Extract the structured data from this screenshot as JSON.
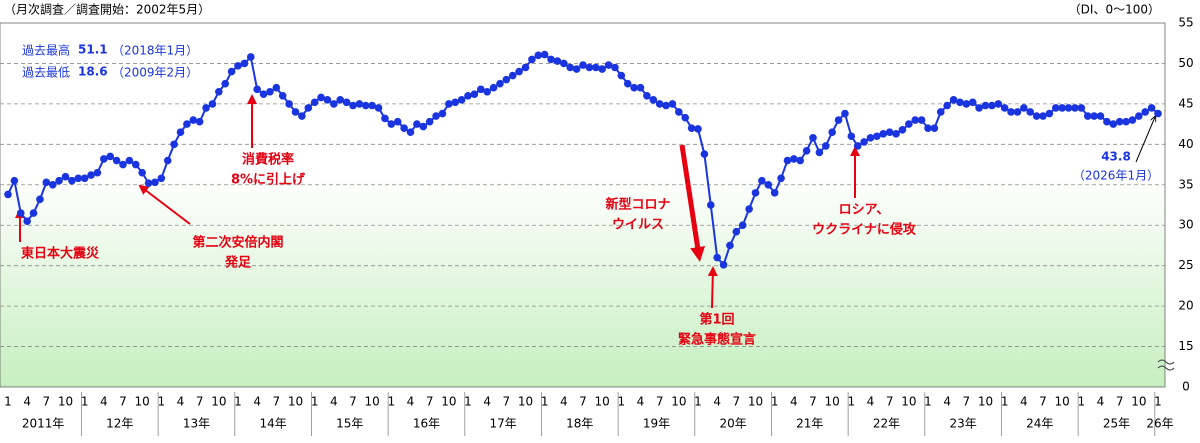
{
  "chart_data": {
    "type": "line",
    "subtitle": "（月次調査／調査開始：2002年5月）",
    "unit_note": "（DI、0～100）",
    "color": "#1a35e0",
    "ylim": [
      10,
      55
    ],
    "yticks": [
      15,
      20,
      25,
      30,
      35,
      40,
      45,
      50,
      55
    ],
    "y_break_label": "0",
    "grid": true,
    "categories": [
      "1",
      null,
      null,
      "4",
      null,
      null,
      "7",
      null,
      null,
      "10",
      null,
      null,
      "1",
      null,
      null,
      "4",
      null,
      null,
      "7",
      null,
      null,
      "10",
      null,
      null,
      "1",
      null,
      null,
      "4",
      null,
      null,
      "7",
      null,
      null,
      "10",
      null,
      null,
      "1",
      null,
      null,
      "4",
      null,
      null,
      "7",
      null,
      null,
      "10",
      null,
      null,
      "1",
      null,
      null,
      "4",
      null,
      null,
      "7",
      null,
      null,
      "10",
      null,
      null,
      "1",
      null,
      null,
      "4",
      null,
      null,
      "7",
      null,
      null,
      "10",
      null,
      null,
      "1",
      null,
      null,
      "4",
      null,
      null,
      "7",
      null,
      null,
      "10",
      null,
      null,
      "1",
      null,
      null,
      "4",
      null,
      null,
      "7",
      null,
      null,
      "10",
      null,
      null,
      "1",
      null,
      null,
      "4",
      null,
      null,
      "7",
      null,
      null,
      "10",
      null,
      null,
      "1",
      null,
      null,
      "4",
      null,
      null,
      "7",
      null,
      null,
      "10",
      null,
      null,
      "1",
      null,
      null,
      "4",
      null,
      null,
      "7",
      null,
      null,
      "10",
      null,
      null,
      "1",
      null,
      null,
      "4",
      null,
      null,
      "7",
      null,
      null,
      "10",
      null,
      null,
      "1",
      null,
      null,
      "4",
      null,
      null,
      "7",
      null,
      null,
      "10",
      null,
      null,
      "1",
      null,
      null,
      "4",
      null,
      null,
      "7",
      null,
      null,
      "10",
      null,
      null,
      "1",
      null,
      null,
      "4",
      null,
      null,
      "7",
      null,
      null,
      "10",
      null,
      null,
      "1"
    ],
    "year_labels": [
      "2011年",
      "12年",
      "13年",
      "14年",
      "15年",
      "16年",
      "17年",
      "18年",
      "19年",
      "20年",
      "21年",
      "22年",
      "23年",
      "24年",
      "25年",
      "26年"
    ],
    "values": [
      33.8,
      35.5,
      31.5,
      30.5,
      31.5,
      33.2,
      35.3,
      35.0,
      35.5,
      36.0,
      35.5,
      35.8,
      35.8,
      36.2,
      36.5,
      38.2,
      38.5,
      38.0,
      37.5,
      38.0,
      37.5,
      36.5,
      35.2,
      35.3,
      35.8,
      38.0,
      40.0,
      41.5,
      42.5,
      43.0,
      42.8,
      44.5,
      45.0,
      46.5,
      47.5,
      49.0,
      49.7,
      50.0,
      50.8,
      46.8,
      46.2,
      46.5,
      47.0,
      46.0,
      45.0,
      44.0,
      43.5,
      44.5,
      45.2,
      45.8,
      45.5,
      45.0,
      45.5,
      45.2,
      44.8,
      45.0,
      44.8,
      44.8,
      44.5,
      43.2,
      42.5,
      42.8,
      42.0,
      41.5,
      42.5,
      42.2,
      42.8,
      43.5,
      43.8,
      45.0,
      45.2,
      45.5,
      46.0,
      46.2,
      46.8,
      46.5,
      47.0,
      47.5,
      48.0,
      48.5,
      49.0,
      49.5,
      50.5,
      51.0,
      51.1,
      50.5,
      50.3,
      50.0,
      49.5,
      49.3,
      49.8,
      49.5,
      49.5,
      49.3,
      49.8,
      49.5,
      48.5,
      47.5,
      47.0,
      47.0,
      46.0,
      45.5,
      45.0,
      44.8,
      45.0,
      44.0,
      43.3,
      42.0,
      41.9,
      38.8,
      32.5,
      26.0,
      25.1,
      27.5,
      29.2,
      30.0,
      32.0,
      34.0,
      35.5,
      35.0,
      34.0,
      35.8,
      38.0,
      38.2,
      38.0,
      39.2,
      40.8,
      39.0,
      39.8,
      41.5,
      43.0,
      43.8,
      41.0,
      39.8,
      40.3,
      40.8,
      41.0,
      41.3,
      41.5,
      41.3,
      41.8,
      42.5,
      43.0,
      43.0,
      42.0,
      42.0,
      44.0,
      44.8,
      45.5,
      45.2,
      45.0,
      45.2,
      44.5,
      44.8,
      44.8,
      45.0,
      44.5,
      44.0,
      44.0,
      44.5,
      44.0,
      43.5,
      43.5,
      43.8,
      44.5,
      44.5,
      44.5,
      44.5,
      44.5,
      43.5,
      43.5,
      43.5,
      42.8,
      42.5,
      42.8,
      42.8,
      43.0,
      43.5,
      44.0,
      44.5,
      43.8
    ],
    "record_high": {
      "label": "過去最高",
      "date": "（2018年1月）"
    },
    "record_low": {
      "label": "過去最低",
      "value": 18.6,
      "date": "（2009年2月）"
    },
    "last_date": "（2026年1月）",
    "annotations": [
      {
        "lines": [
          "東日本大震災"
        ]
      },
      {
        "lines": [
          "第二次安倍内閣",
          "発足"
        ]
      },
      {
        "lines": [
          "消費税率",
          "8%に引上げ"
        ]
      },
      {
        "lines": [
          "新型コロナ",
          "ウイルス"
        ]
      },
      {
        "lines": [
          "第1回",
          "緊急事態宣言"
        ]
      },
      {
        "lines": [
          "ロシア、",
          "ウクライナに侵攻"
        ]
      }
    ]
  }
}
